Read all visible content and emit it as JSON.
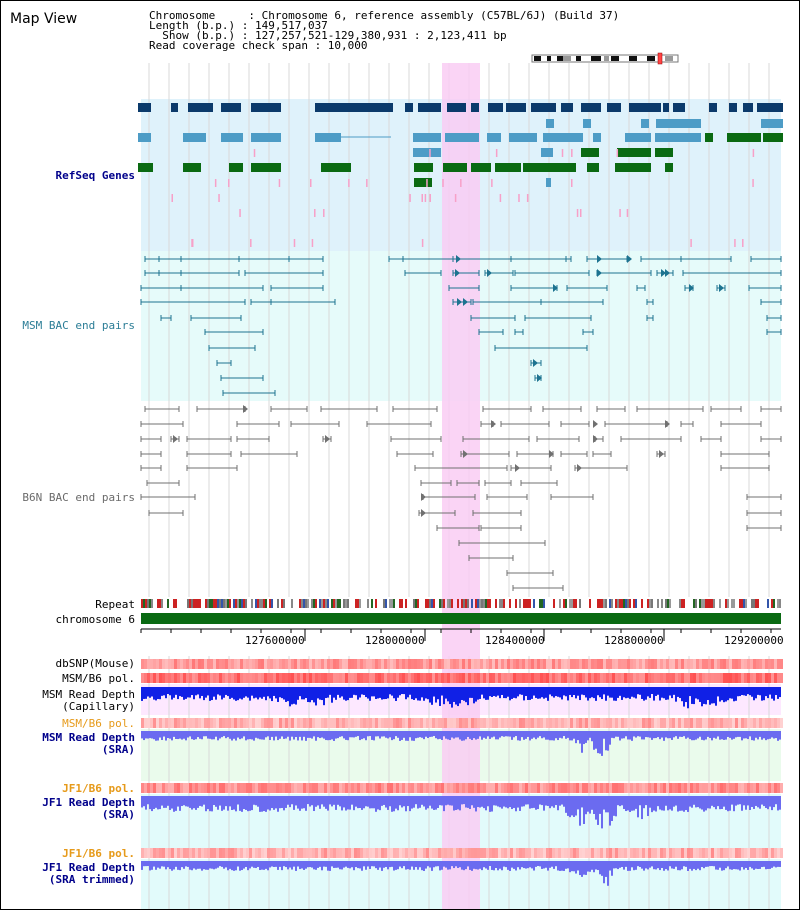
{
  "title": "Map View",
  "info": {
    "chromosome": "Chromosome     : Chromosome 6, reference assembly (C57BL/6J) (Build 37)",
    "length": "Length (b.p.) : 149,517,037",
    "show": "  Show (b.p.) : 127,257,521-129,380,931 : 2,123,411 bp",
    "coverage": "Read coverage check span : 10,000"
  },
  "tracks": {
    "refseq": "RefSeq Genes",
    "msm_bac": "MSM BAC end pairs",
    "b6n_bac": "B6N BAC end pairs",
    "repeat": "Repeat",
    "chromosome": "chromosome 6",
    "dbsnp": "dbSNP(Mouse)",
    "msm_b6_pol_1": "MSM/B6 pol.",
    "msm_depth_cap_1": "MSM Read Depth",
    "msm_depth_cap_2": "(Capillary)",
    "msm_b6_pol_2": "MSM/B6 pol.",
    "msm_depth_sra_1": "MSM Read Depth",
    "msm_depth_sra_2": "(SRA)",
    "jf1_b6_pol_1": "JF1/B6 pol.",
    "jf1_depth_sra_1": "JF1 Read Depth",
    "jf1_depth_sra_2": "(SRA)",
    "jf1_b6_pol_2": "JF1/B6 pol.",
    "jf1_depth_trim_1": "JF1 Read Depth",
    "jf1_depth_trim_2": "(SRA trimmed)"
  },
  "axis": {
    "ticks": [
      "127600000",
      "128000000",
      "128400000",
      "128800000",
      "129200000"
    ]
  },
  "colors": {
    "refseq_bg": "#dff2fb",
    "bac_bg": "#e6fbfa",
    "highlight": "#f9ccf3",
    "dark_navy": "#0b3a6b",
    "light_blue": "#4d9cc6",
    "green": "#0a6a12",
    "pink": "#f7a0c8",
    "teal": "#1d7390",
    "gray": "#707070",
    "label_navy": "#00008b",
    "label_teal": "#2b7d96",
    "label_gray": "#6a6a6a",
    "label_orange": "#e69a1a",
    "depth_blue": "#1020e6",
    "depth_light": "#6b6bf0",
    "chrom_green": "#0a6a12"
  }
}
